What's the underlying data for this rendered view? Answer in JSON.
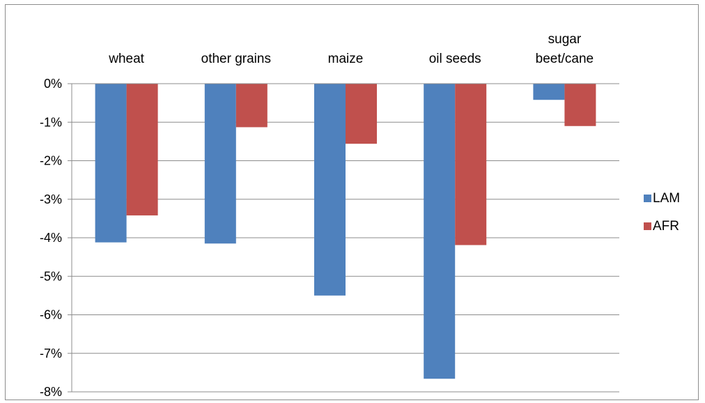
{
  "chart_data": {
    "type": "bar",
    "categories": [
      "wheat",
      "other grains",
      "maize",
      "oil seeds",
      "sugar beet/cane"
    ],
    "series": [
      {
        "name": "LAM",
        "color": "#4f81bd",
        "values": [
          -4.12,
          -4.15,
          -5.5,
          -7.66,
          -0.42
        ]
      },
      {
        "name": "AFR",
        "color": "#c0504d",
        "values": [
          -3.42,
          -1.13,
          -1.56,
          -4.19,
          -1.1
        ]
      }
    ],
    "yticks": [
      "0%",
      "-1%",
      "-2%",
      "-3%",
      "-4%",
      "-5%",
      "-6%",
      "-7%",
      "-8%"
    ],
    "ylim": [
      -8,
      0
    ],
    "grid": true,
    "legend_position": "right",
    "category_axis_position": "top"
  }
}
